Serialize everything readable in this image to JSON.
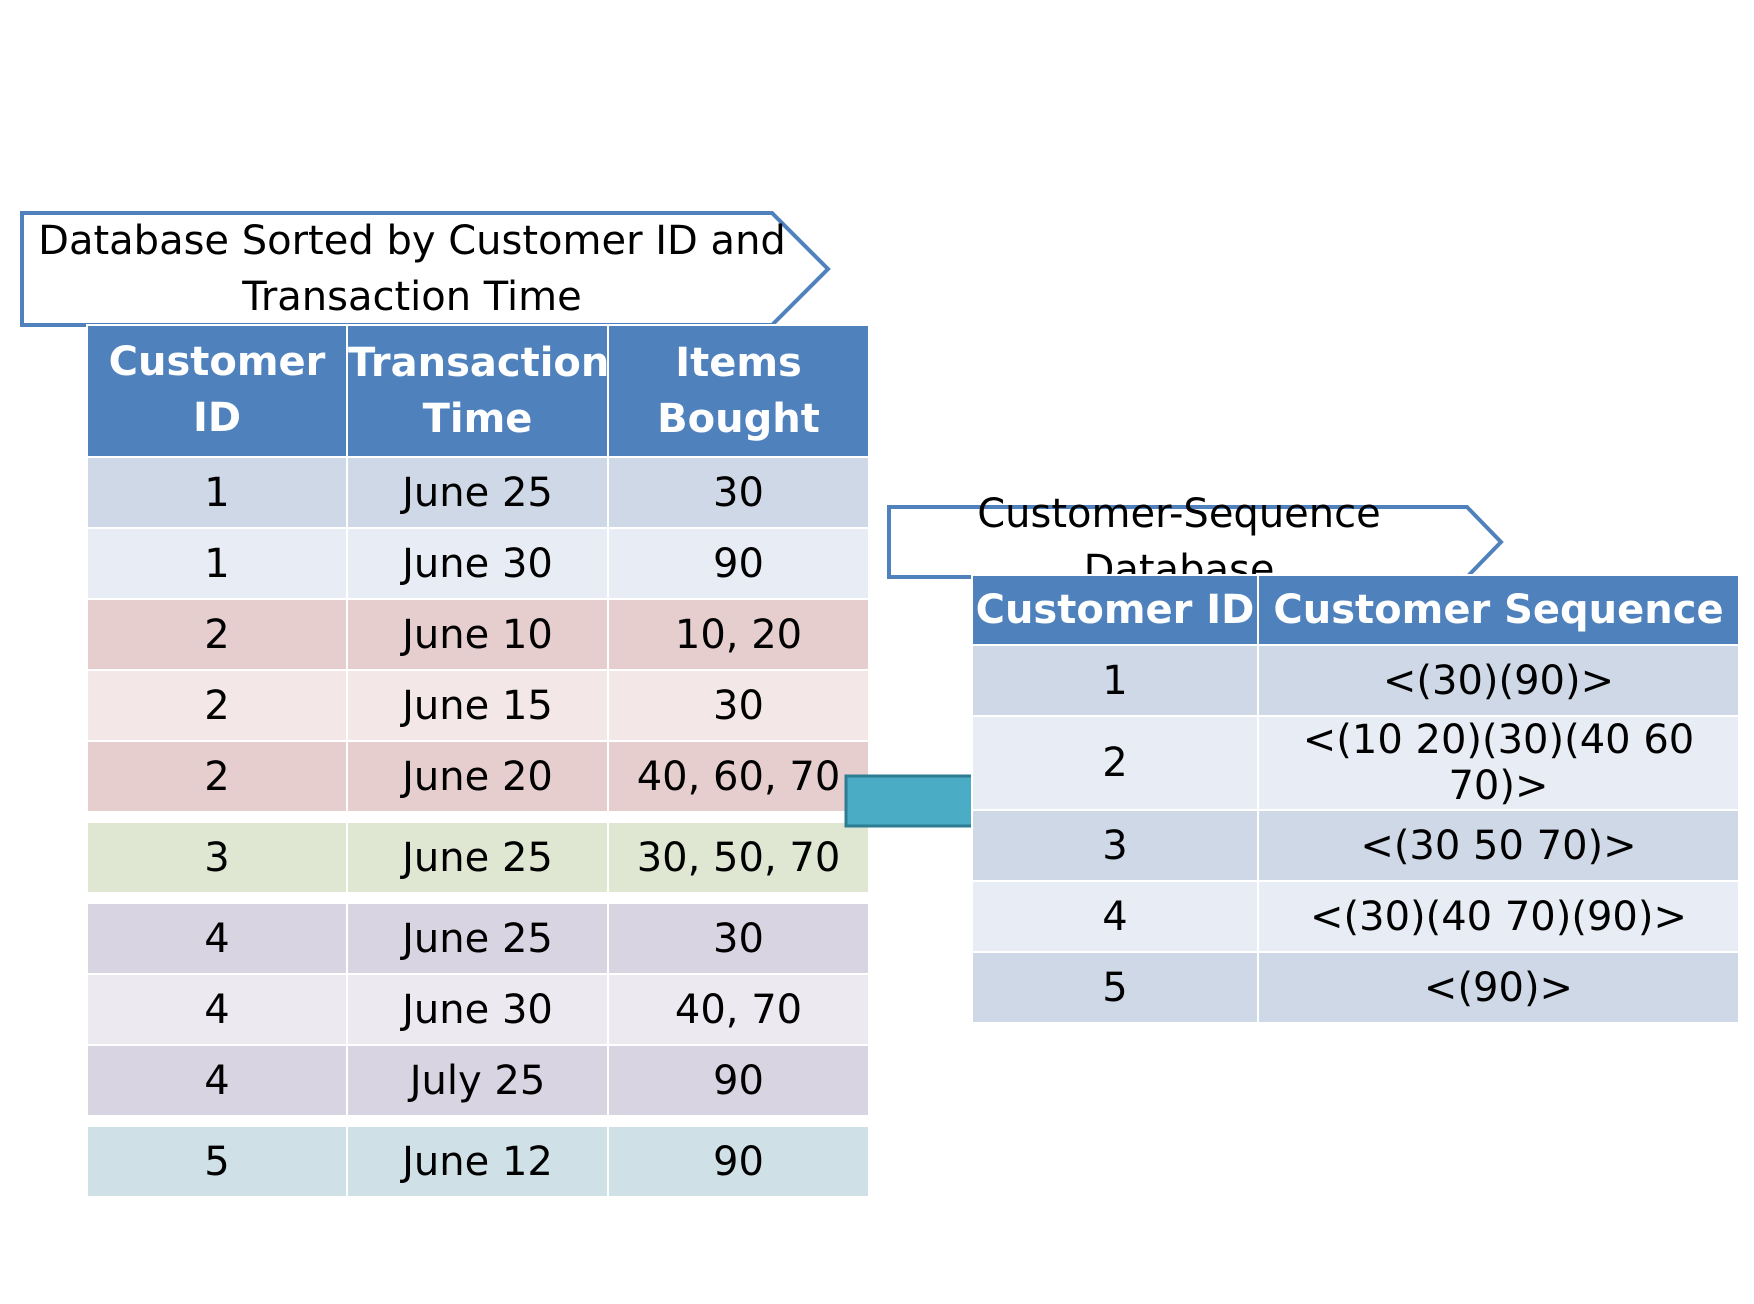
{
  "left_banner": {
    "line1": "Database Sorted by Customer ID and",
    "line2": "Transaction Time"
  },
  "left_table": {
    "headers": [
      {
        "line1": "Customer ID",
        "line2": ""
      },
      {
        "line1": "Transaction",
        "line2": "Time"
      },
      {
        "line1": "Items",
        "line2": "Bought"
      }
    ],
    "rows": [
      {
        "customer_id": "1",
        "time": "June 25",
        "items": "30",
        "color": "#cfd8e6"
      },
      {
        "customer_id": "1",
        "time": "June 30",
        "items": "90",
        "color": "#e8ecf4"
      },
      {
        "customer_id": "2",
        "time": "June 10",
        "items": "10, 20",
        "color": "#e6cece"
      },
      {
        "customer_id": "2",
        "time": "June 15",
        "items": "30",
        "color": "#f3e7e7"
      },
      {
        "customer_id": "2",
        "time": "June 20",
        "items": "40, 60, 70",
        "color": "#e6cece"
      },
      {
        "customer_id": "3",
        "time": "June 25",
        "items": "30, 50, 70",
        "color": "#dfe6d1"
      },
      {
        "customer_id": "4",
        "time": "June 25",
        "items": "30",
        "color": "#d8d4e2"
      },
      {
        "customer_id": "4",
        "time": "June 30",
        "items": "40, 70",
        "color": "#ece9f1"
      },
      {
        "customer_id": "4",
        "time": "July 25",
        "items": "90",
        "color": "#d8d4e2"
      },
      {
        "customer_id": "5",
        "time": "June 12",
        "items": "90",
        "color": "#cfe1e7"
      }
    ]
  },
  "right_banner": {
    "label": "Customer-Sequence Database"
  },
  "right_table": {
    "headers": [
      "Customer ID",
      "Customer Sequence"
    ],
    "rows": [
      {
        "customer_id": "1",
        "sequence": "<(30)(90)>",
        "color": "#cfd8e6"
      },
      {
        "customer_id": "2",
        "sequence": "<(10 20)(30)(40 60 70)>",
        "color": "#e8ecf4"
      },
      {
        "customer_id": "3",
        "sequence": "<(30 50 70)>",
        "color": "#cfd8e6"
      },
      {
        "customer_id": "4",
        "sequence": "<(30)(40 70)(90)>",
        "color": "#e8ecf4"
      },
      {
        "customer_id": "5",
        "sequence": "<(90)>",
        "color": "#cfd8e6"
      }
    ]
  },
  "colors": {
    "header": "#4f81bd",
    "banner_border": "#4f81bd",
    "arrow_fill": "#4bacc6",
    "arrow_stroke": "#2e7c91"
  }
}
